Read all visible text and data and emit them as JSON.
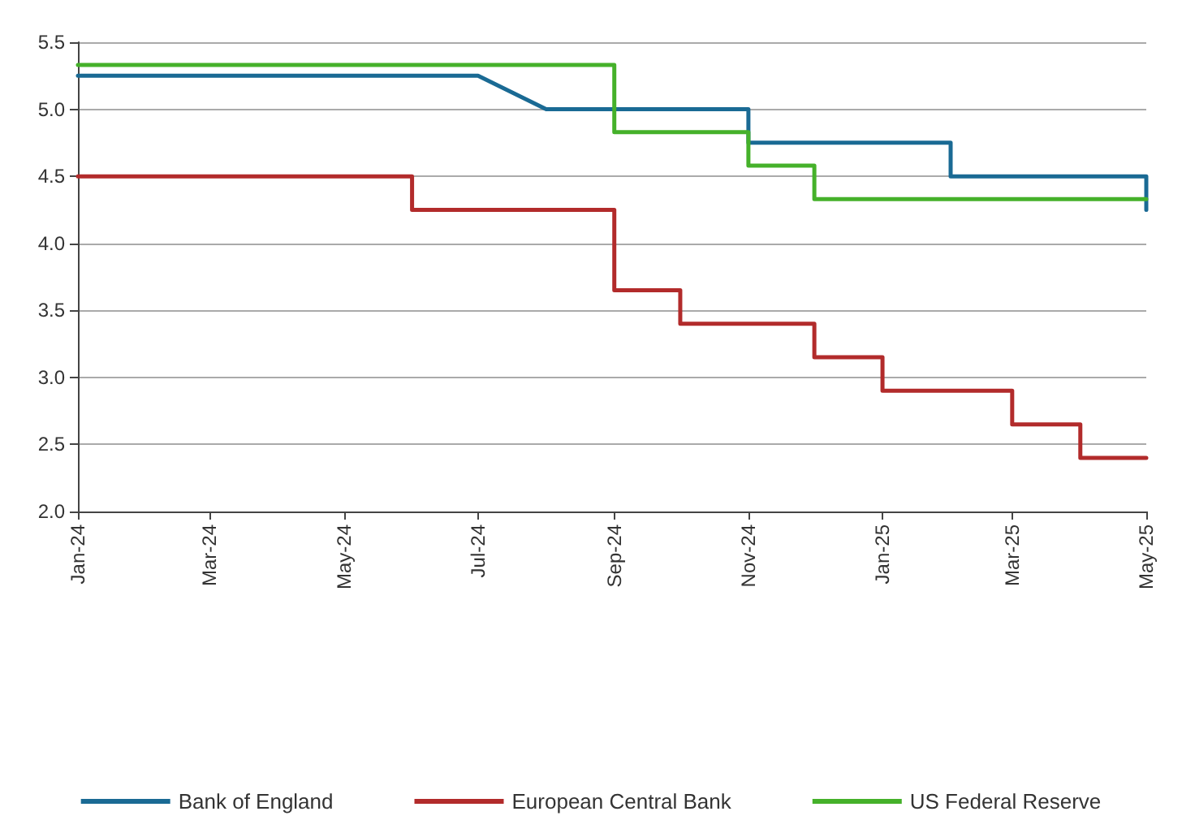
{
  "chart_data": {
    "type": "line",
    "xlim": [
      "2024-01-01",
      "2025-05-01"
    ],
    "xticks": [
      {
        "value": "2024-01",
        "label": "Jan-24"
      },
      {
        "value": "2024-03",
        "label": "Mar-24"
      },
      {
        "value": "2024-05",
        "label": "May-24"
      },
      {
        "value": "2024-07",
        "label": "Jul-24"
      },
      {
        "value": "2024-09",
        "label": "Sep-24"
      },
      {
        "value": "2024-11",
        "label": "Nov-24"
      },
      {
        "value": "2025-01",
        "label": "Jan-25"
      },
      {
        "value": "2025-03",
        "label": "Mar-25"
      },
      {
        "value": "2025-05",
        "label": "May-25"
      }
    ],
    "ylim": [
      2,
      5.5
    ],
    "yticks": [
      {
        "value": 2,
        "label": "2.0"
      },
      {
        "value": 2.5,
        "label": "2.5"
      },
      {
        "value": 3,
        "label": "3.0"
      },
      {
        "value": 3.5,
        "label": "3.5"
      },
      {
        "value": 4,
        "label": "4.0"
      },
      {
        "value": 4.5,
        "label": "4.5"
      },
      {
        "value": 5,
        "label": "5.0"
      },
      {
        "value": 5.5,
        "label": "5.5"
      }
    ],
    "grid": "y",
    "legend": "bottom",
    "marker": "none",
    "line_style": "solid",
    "series": [
      {
        "name": "Bank of England",
        "color": "#1a6a94",
        "x": [
          "2024-01-01",
          "2024-07-01",
          "2024-08-01",
          "2024-11-01",
          "2024-11-01",
          "2025-02-01",
          "2025-02-01",
          "2025-05-01",
          "2025-05-01"
        ],
        "values": [
          5.25,
          5.25,
          5.0,
          5.0,
          4.75,
          4.75,
          4.5,
          4.5,
          4.25
        ]
      },
      {
        "name": "European Central Bank",
        "color": "#b22b2b",
        "x": [
          "2024-01-01",
          "2024-06-01",
          "2024-06-01",
          "2024-09-01",
          "2024-09-01",
          "2024-10-01",
          "2024-10-01",
          "2024-12-01",
          "2024-12-01",
          "2025-01-01",
          "2025-01-01",
          "2025-03-01",
          "2025-03-01",
          "2025-04-01",
          "2025-04-01",
          "2025-05-01"
        ],
        "values": [
          4.5,
          4.5,
          4.25,
          4.25,
          3.65,
          3.65,
          3.4,
          3.4,
          3.15,
          3.15,
          2.9,
          2.9,
          2.65,
          2.65,
          2.4,
          2.4
        ]
      },
      {
        "name": "US Federal Reserve",
        "color": "#45b12a",
        "x": [
          "2024-01-01",
          "2024-09-01",
          "2024-09-01",
          "2024-11-01",
          "2024-11-01",
          "2024-12-01",
          "2024-12-01",
          "2025-05-01"
        ],
        "values": [
          5.33,
          5.33,
          4.83,
          4.83,
          4.58,
          4.58,
          4.33,
          4.33
        ]
      }
    ]
  }
}
